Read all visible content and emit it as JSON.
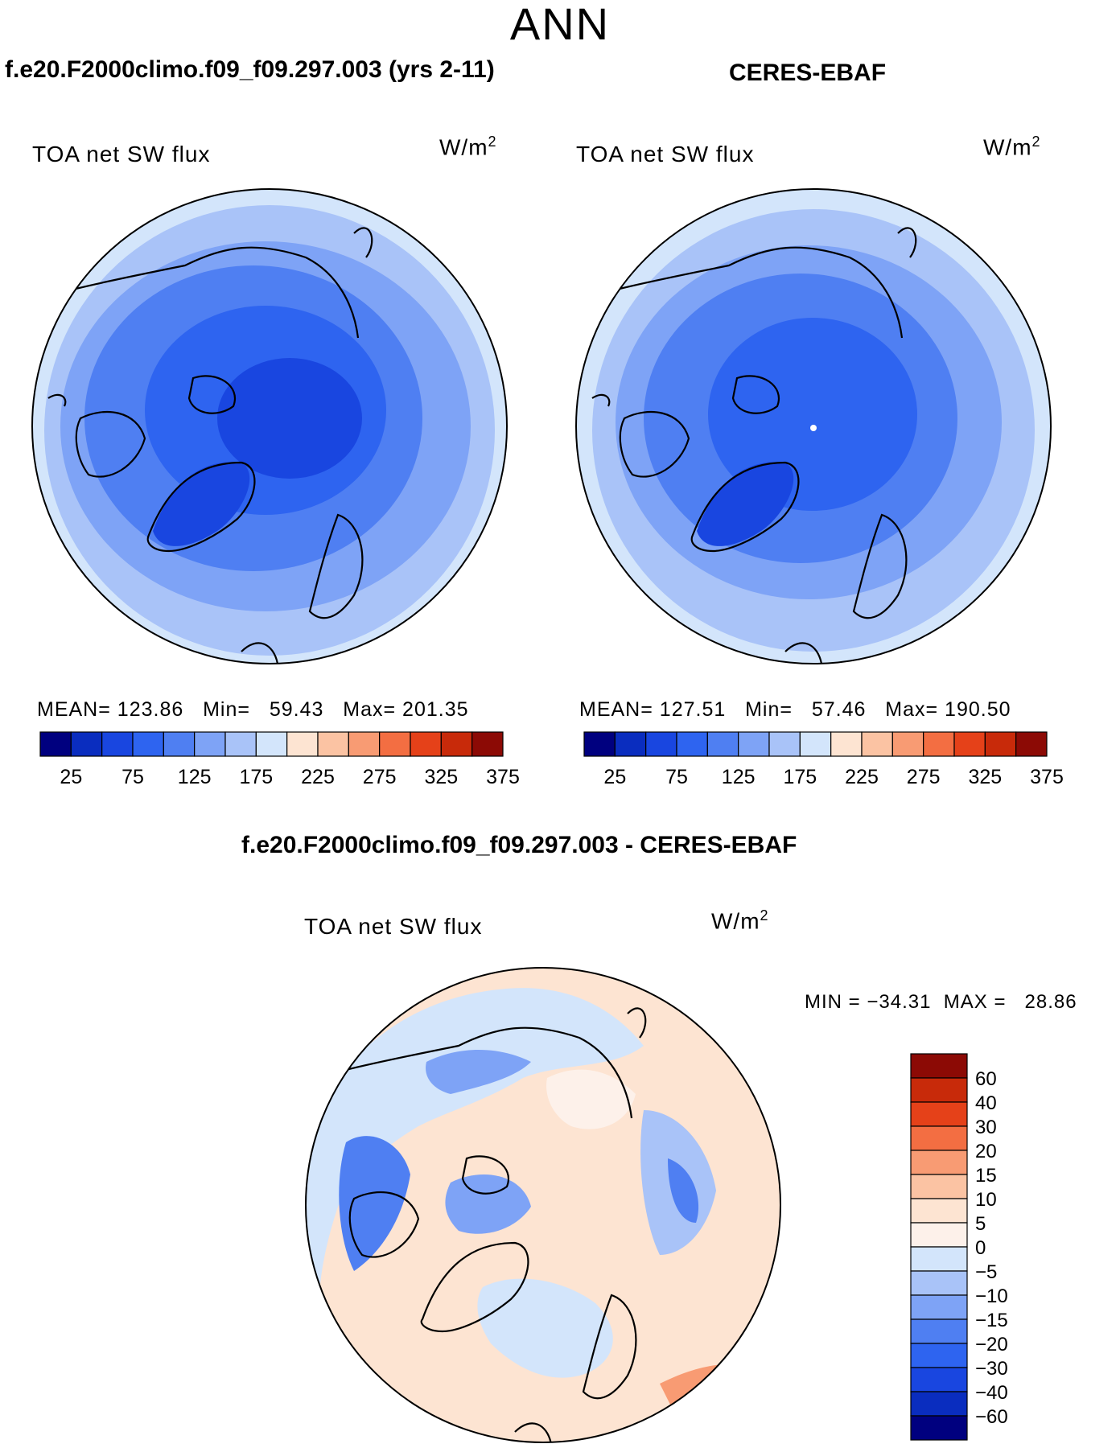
{
  "season": "ANN",
  "titles": {
    "model": "f.e20.F2000climo.f09_f09.297.003 (yrs 2-11)",
    "obs": "CERES-EBAF",
    "diff": "f.e20.F2000climo.f09_f09.297.003 - CERES-EBAF"
  },
  "variable": "TOA net SW flux",
  "units": {
    "base": "W/m",
    "exp": "2"
  },
  "model_stats": {
    "mean_label": "MEAN=",
    "mean": "123.86",
    "min_label": "Min=",
    "min": "59.43",
    "max_label": "Max=",
    "max": "201.35"
  },
  "obs_stats": {
    "mean_label": "MEAN=",
    "mean": "127.51",
    "min_label": "Min=",
    "min": "57.46",
    "max_label": "Max=",
    "max": "190.50"
  },
  "diff_stats": {
    "min_label": "MIN =",
    "min": "−34.31",
    "max_label": "MAX =",
    "max": "28.86"
  },
  "chart_data": [
    {
      "type": "heatmap",
      "name": "model",
      "title": "f.e20.F2000climo.f09_f09.297.003 (yrs 2-11)",
      "projection": "north polar stereographic",
      "colorbar": {
        "ticks": [
          "25",
          "75",
          "125",
          "175",
          "225",
          "275",
          "325",
          "375"
        ],
        "colors": [
          "#00007f",
          "#0a2dbf",
          "#1946e0",
          "#2e64f0",
          "#4f7ff2",
          "#7ea3f6",
          "#a9c3f8",
          "#d3e5fb",
          "#fde4d2",
          "#fbc3a3",
          "#f89b73",
          "#f36e42",
          "#e54119",
          "#c82a0a",
          "#8c0a05"
        ]
      },
      "stats": {
        "mean": 123.86,
        "min": 59.43,
        "max": 201.35
      }
    },
    {
      "type": "heatmap",
      "name": "obs",
      "title": "CERES-EBAF",
      "projection": "north polar stereographic",
      "colorbar": {
        "ticks": [
          "25",
          "75",
          "125",
          "175",
          "225",
          "275",
          "325",
          "375"
        ],
        "colors": [
          "#00007f",
          "#0a2dbf",
          "#1946e0",
          "#2e64f0",
          "#4f7ff2",
          "#7ea3f6",
          "#a9c3f8",
          "#d3e5fb",
          "#fde4d2",
          "#fbc3a3",
          "#f89b73",
          "#f36e42",
          "#e54119",
          "#c82a0a",
          "#8c0a05"
        ]
      },
      "stats": {
        "mean": 127.51,
        "min": 57.46,
        "max": 190.5
      }
    },
    {
      "type": "heatmap",
      "name": "difference",
      "title": "f.e20.F2000climo.f09_f09.297.003 - CERES-EBAF",
      "projection": "north polar stereographic",
      "colorbar": {
        "ticks": [
          "60",
          "40",
          "30",
          "20",
          "15",
          "10",
          "5",
          "0",
          "−5",
          "−10",
          "−15",
          "−20",
          "−30",
          "−40",
          "−60"
        ],
        "colors": [
          "#8c0a05",
          "#c82a0a",
          "#e54119",
          "#f36e42",
          "#f89b73",
          "#fbc3a3",
          "#fde4d2",
          "#fdf1ea",
          "#d3e5fb",
          "#a9c3f8",
          "#7ea3f6",
          "#4f7ff2",
          "#2e64f0",
          "#1946e0",
          "#0a2dbf",
          "#00007f"
        ]
      },
      "stats": {
        "min": -34.31,
        "max": 28.86
      }
    }
  ]
}
